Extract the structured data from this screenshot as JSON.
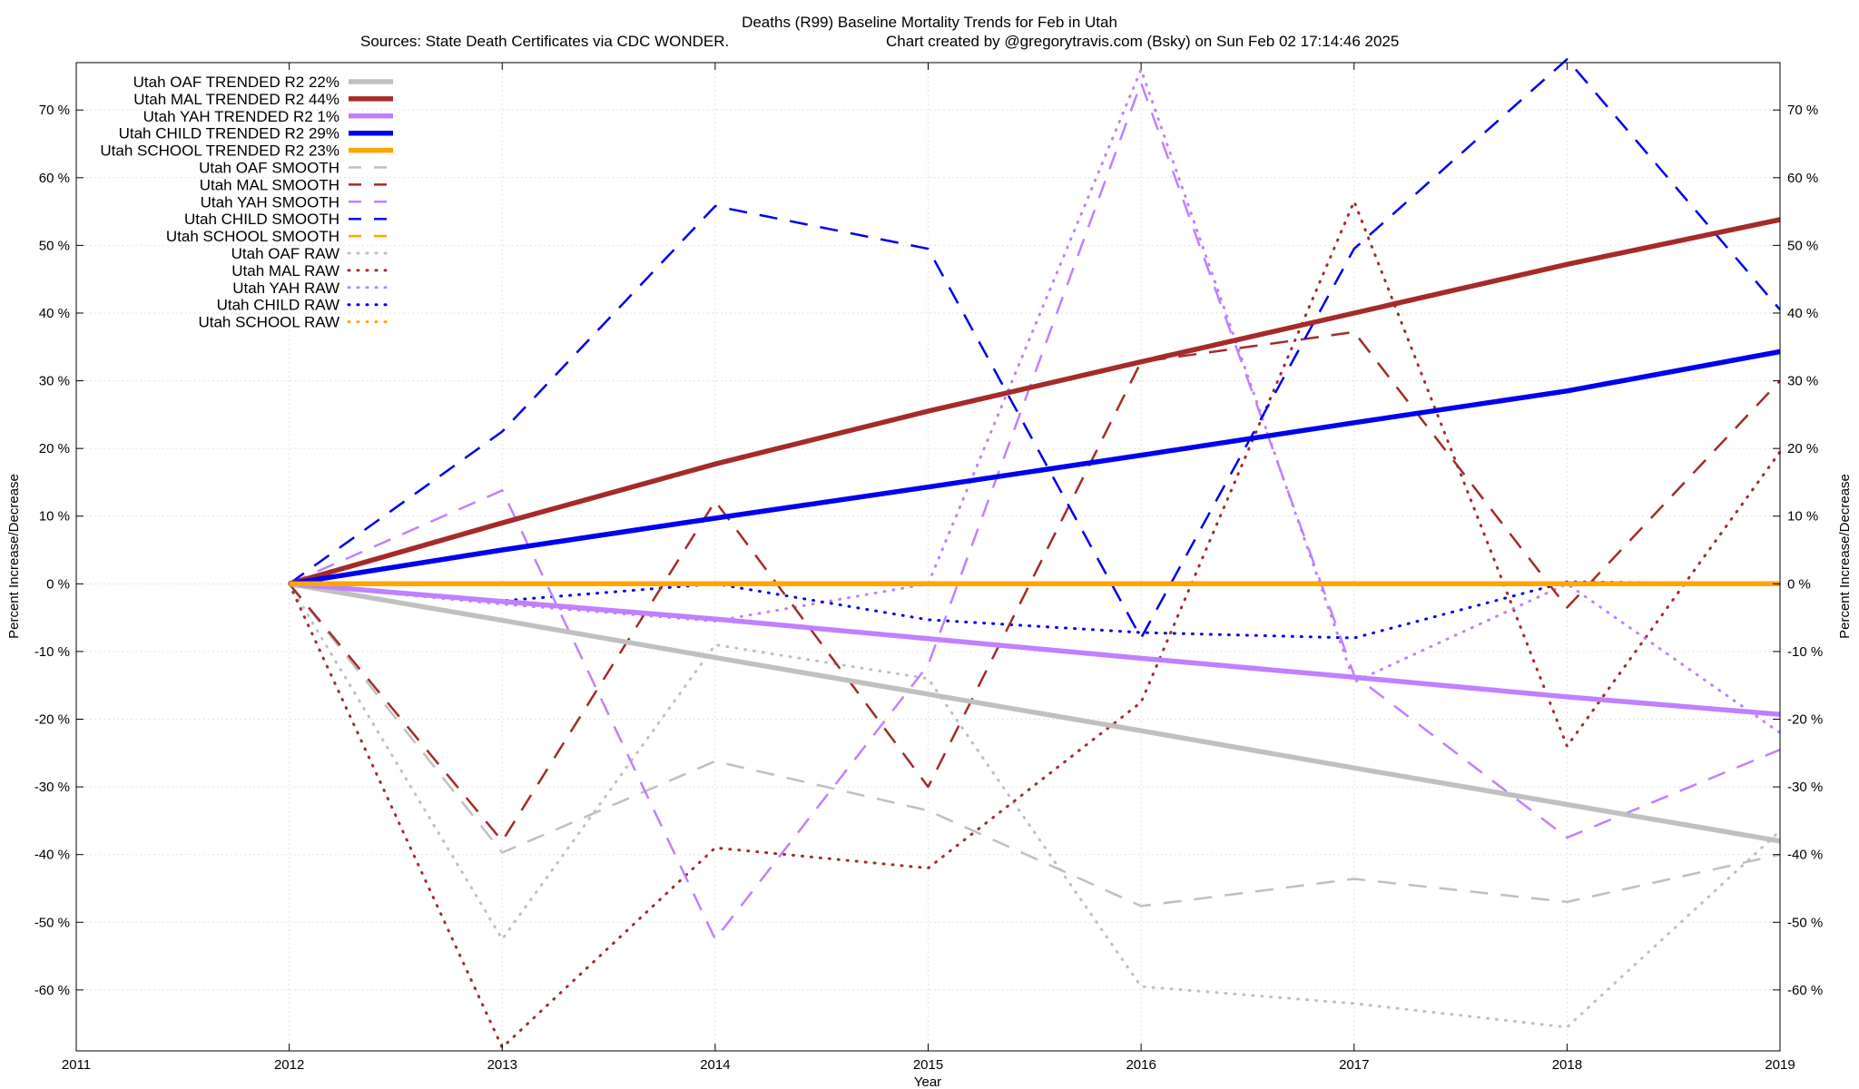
{
  "chart_data": {
    "type": "line",
    "title": "Deaths (R99)  Baseline Mortality Trends for Feb in Utah",
    "subtitle_left": "Sources: State Death Certificates via CDC WONDER.",
    "subtitle_right": "Chart created by @gregorytravis.com (Bsky) on Sun Feb 02 17:14:46 2025",
    "xlabel": "Year",
    "ylabel_left": "Percent Increase/Decrease",
    "ylabel_right": "Percent Increase/Decrease",
    "xlim": [
      2011,
      2019
    ],
    "ylim": [
      -69,
      77
    ],
    "xticks": [
      "2011",
      "2012",
      "2013",
      "2014",
      "2015",
      "2016",
      "2017",
      "2018",
      "2019"
    ],
    "yticks_left": [
      "70 %",
      "60 %",
      "50 %",
      "40 %",
      "30 %",
      "20 %",
      "10 %",
      "0 %",
      "-10 %",
      "-20 %",
      "-30 %",
      "-40 %",
      "-50 %",
      "-60 %"
    ],
    "yticks_right": [
      "70 %",
      "60 %",
      "50 %",
      "40 %",
      "30 %",
      "20 %",
      "10 %",
      "0 %",
      "-10 %",
      "-20 %",
      "-30 %",
      "-40 %",
      "-50 %",
      "-60 %"
    ],
    "ytick_values": [
      70,
      60,
      50,
      40,
      30,
      20,
      10,
      0,
      -10,
      -20,
      -30,
      -40,
      -50,
      -60
    ],
    "x": [
      2012,
      2013,
      2014,
      2015,
      2016,
      2017,
      2018,
      2019
    ],
    "grid": true,
    "legend_position": "top-left",
    "series": [
      {
        "name": "Utah OAF TRENDED R2",
        "r2": "22%",
        "style": "trend",
        "color": "#c0c0c0",
        "values": [
          0,
          -5.4,
          -10.9,
          -16.3,
          -21.7,
          -27.2,
          -32.6,
          -38.0
        ]
      },
      {
        "name": "Utah MAL TRENDED R2",
        "r2": "44%",
        "style": "trend",
        "color": "#a52a2a",
        "values": [
          0,
          9.0,
          17.7,
          25.5,
          32.8,
          40.0,
          47.2,
          53.8
        ]
      },
      {
        "name": "Utah YAH TRENDED R2",
        "r2": "1%",
        "style": "trend",
        "color": "#c080ff",
        "values": [
          0,
          -2.6,
          -5.2,
          -8.1,
          -11.0,
          -13.8,
          -16.7,
          -19.3
        ]
      },
      {
        "name": "Utah CHILD TRENDED R2",
        "r2": "29%",
        "style": "trend",
        "color": "#0000ee",
        "values": [
          0,
          5.0,
          9.7,
          14.3,
          19.0,
          23.8,
          28.5,
          34.3
        ]
      },
      {
        "name": "Utah SCHOOL TRENDED R2",
        "r2": "23%",
        "style": "trend",
        "color": "#ffa500",
        "values": [
          0,
          0,
          0,
          0,
          0,
          0,
          0,
          0
        ]
      },
      {
        "name": "Utah OAF SMOOTH",
        "r2": "",
        "style": "smooth",
        "color": "#c0c0c0",
        "values": [
          0,
          -39.7,
          -26.2,
          -33.5,
          -47.6,
          -43.6,
          -47.0,
          -40.0
        ]
      },
      {
        "name": "Utah MAL SMOOTH",
        "r2": "",
        "style": "smooth",
        "color": "#a52a2a",
        "values": [
          0,
          -38.0,
          12.2,
          -30.0,
          32.8,
          37.2,
          -3.5,
          30.0
        ]
      },
      {
        "name": "Utah YAH SMOOTH",
        "r2": "",
        "style": "smooth",
        "color": "#c080ff",
        "values": [
          0,
          13.8,
          -52.5,
          -12.0,
          74.0,
          -13.5,
          -37.5,
          -24.5
        ]
      },
      {
        "name": "Utah CHILD SMOOTH",
        "r2": "",
        "style": "smooth",
        "color": "#0000ee",
        "values": [
          0,
          22.5,
          55.8,
          49.5,
          -8.0,
          49.5,
          77.5,
          40.5
        ]
      },
      {
        "name": "Utah SCHOOL SMOOTH",
        "r2": "",
        "style": "smooth",
        "color": "#ffa500",
        "values": [
          0,
          0,
          0,
          0,
          0,
          0,
          0,
          0
        ]
      },
      {
        "name": "Utah OAF RAW",
        "r2": "",
        "style": "raw",
        "color": "#c0c0c0",
        "values": [
          0,
          -52.5,
          -9.0,
          -14.0,
          -59.5,
          -62.0,
          -65.5,
          -36.5
        ]
      },
      {
        "name": "Utah MAL RAW",
        "r2": "",
        "style": "raw",
        "color": "#a52a2a",
        "values": [
          0,
          -68.5,
          -39.0,
          -42.0,
          -17.5,
          56.5,
          -24.0,
          19.5
        ]
      },
      {
        "name": "Utah YAH RAW",
        "r2": "",
        "style": "raw",
        "color": "#c080ff",
        "values": [
          0,
          -3.0,
          -5.5,
          0,
          76.0,
          -14.5,
          0,
          -22.0
        ]
      },
      {
        "name": "Utah CHILD RAW",
        "r2": "",
        "style": "raw",
        "color": "#0000ee",
        "values": [
          0,
          -2.5,
          0,
          -5.3,
          -7.2,
          -8.0,
          0.3,
          0
        ]
      },
      {
        "name": "Utah SCHOOL RAW",
        "r2": "",
        "style": "raw",
        "color": "#ffa500",
        "values": [
          0,
          0,
          0,
          0,
          0,
          0,
          0,
          0
        ]
      }
    ]
  }
}
